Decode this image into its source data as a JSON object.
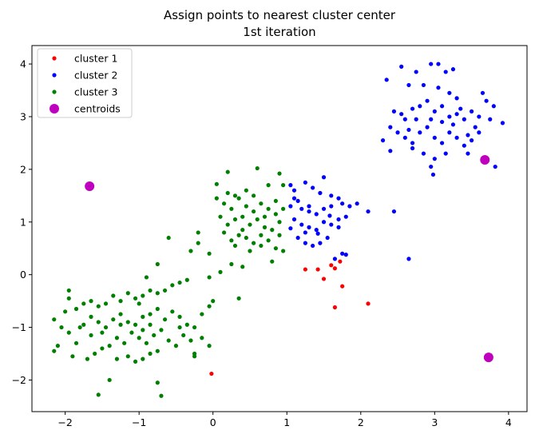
{
  "chart_data": {
    "type": "scatter",
    "title": "Assign points to nearest cluster center",
    "subtitle": "1st iteration",
    "xlim": [
      -2.45,
      4.25
    ],
    "ylim": [
      -2.6,
      4.35
    ],
    "xticks": [
      -2,
      -1,
      0,
      1,
      2,
      3,
      4
    ],
    "yticks": [
      -2,
      -1,
      0,
      1,
      2,
      3,
      4
    ],
    "legend_position": "top-left",
    "series": [
      {
        "name": "cluster 1",
        "color": "#ff0000",
        "marker": "small-dot",
        "points": [
          [
            1.25,
            0.1
          ],
          [
            1.42,
            0.1
          ],
          [
            1.5,
            -0.08
          ],
          [
            1.6,
            0.18
          ],
          [
            1.65,
            0.12
          ],
          [
            1.72,
            0.25
          ],
          [
            1.75,
            -0.22
          ],
          [
            1.65,
            -0.62
          ],
          [
            2.1,
            -0.55
          ],
          [
            -0.02,
            -1.88
          ]
        ]
      },
      {
        "name": "cluster 2",
        "color": "#0000ff",
        "marker": "small-dot",
        "points": [
          [
            2.35,
            3.7
          ],
          [
            2.55,
            3.95
          ],
          [
            2.65,
            3.6
          ],
          [
            2.75,
            3.85
          ],
          [
            2.85,
            3.6
          ],
          [
            2.95,
            4.0
          ],
          [
            3.05,
            4.0
          ],
          [
            3.15,
            3.85
          ],
          [
            3.25,
            3.9
          ],
          [
            3.05,
            3.55
          ],
          [
            3.2,
            3.45
          ],
          [
            3.3,
            3.35
          ],
          [
            2.45,
            3.1
          ],
          [
            2.55,
            3.05
          ],
          [
            2.6,
            2.95
          ],
          [
            2.7,
            3.15
          ],
          [
            2.8,
            3.2
          ],
          [
            2.9,
            3.3
          ],
          [
            3.0,
            3.1
          ],
          [
            3.1,
            3.2
          ],
          [
            3.2,
            3.0
          ],
          [
            3.3,
            3.05
          ],
          [
            3.4,
            2.95
          ],
          [
            3.5,
            3.1
          ],
          [
            3.6,
            3.0
          ],
          [
            3.7,
            3.3
          ],
          [
            3.8,
            3.2
          ],
          [
            3.65,
            3.45
          ],
          [
            2.4,
            2.8
          ],
          [
            2.5,
            2.7
          ],
          [
            2.6,
            2.6
          ],
          [
            2.7,
            2.5
          ],
          [
            2.8,
            2.7
          ],
          [
            2.9,
            2.8
          ],
          [
            3.0,
            2.6
          ],
          [
            3.1,
            2.5
          ],
          [
            3.2,
            2.7
          ],
          [
            3.3,
            2.6
          ],
          [
            3.4,
            2.45
          ],
          [
            3.5,
            2.55
          ],
          [
            3.6,
            2.7
          ],
          [
            2.3,
            2.55
          ],
          [
            2.4,
            2.35
          ],
          [
            2.7,
            2.4
          ],
          [
            2.85,
            2.3
          ],
          [
            3.0,
            2.2
          ],
          [
            3.15,
            2.3
          ],
          [
            2.95,
            2.05
          ],
          [
            3.45,
            2.3
          ],
          [
            3.25,
            2.85
          ],
          [
            2.95,
            2.95
          ],
          [
            3.1,
            2.9
          ],
          [
            2.75,
            2.95
          ],
          [
            2.65,
            2.75
          ],
          [
            3.55,
            2.8
          ],
          [
            3.75,
            2.95
          ],
          [
            3.45,
            2.65
          ],
          [
            3.35,
            3.15
          ],
          [
            3.92,
            2.88
          ],
          [
            3.82,
            2.05
          ],
          [
            2.98,
            1.9
          ],
          [
            1.05,
            1.7
          ],
          [
            1.1,
            1.6
          ],
          [
            1.25,
            1.75
          ],
          [
            1.35,
            1.65
          ],
          [
            1.45,
            1.55
          ],
          [
            1.5,
            1.85
          ],
          [
            1.6,
            1.5
          ],
          [
            1.7,
            1.45
          ],
          [
            1.75,
            1.35
          ],
          [
            1.85,
            1.3
          ],
          [
            1.95,
            1.35
          ],
          [
            1.05,
            1.3
          ],
          [
            1.15,
            1.4
          ],
          [
            1.2,
            1.25
          ],
          [
            1.3,
            1.2
          ],
          [
            1.4,
            1.15
          ],
          [
            1.5,
            1.25
          ],
          [
            1.6,
            1.3
          ],
          [
            1.7,
            1.05
          ],
          [
            1.8,
            1.1
          ],
          [
            1.1,
            1.05
          ],
          [
            1.2,
            0.95
          ],
          [
            1.3,
            0.9
          ],
          [
            1.4,
            0.85
          ],
          [
            1.5,
            1.0
          ],
          [
            1.6,
            0.95
          ],
          [
            1.7,
            0.9
          ],
          [
            1.15,
            0.7
          ],
          [
            1.25,
            0.6
          ],
          [
            1.35,
            0.55
          ],
          [
            1.45,
            0.6
          ],
          [
            1.55,
            0.7
          ],
          [
            1.65,
            0.3
          ],
          [
            1.75,
            0.4
          ],
          [
            1.8,
            0.38
          ],
          [
            2.1,
            1.2
          ],
          [
            2.45,
            1.2
          ],
          [
            2.65,
            0.3
          ],
          [
            1.25,
            0.8
          ],
          [
            1.42,
            0.78
          ],
          [
            1.1,
            1.45
          ],
          [
            1.3,
            1.3
          ],
          [
            1.58,
            1.12
          ],
          [
            1.05,
            0.88
          ]
        ]
      },
      {
        "name": "cluster 3",
        "color": "#008000",
        "marker": "small-dot",
        "points": [
          [
            0.05,
            1.72
          ],
          [
            0.2,
            1.95
          ],
          [
            0.3,
            1.5
          ],
          [
            0.45,
            1.6
          ],
          [
            0.6,
            2.02
          ],
          [
            0.75,
            1.7
          ],
          [
            0.9,
            1.92
          ],
          [
            0.95,
            1.7
          ],
          [
            0.05,
            1.45
          ],
          [
            0.15,
            1.35
          ],
          [
            0.25,
            1.25
          ],
          [
            0.35,
            1.45
          ],
          [
            0.45,
            1.3
          ],
          [
            0.55,
            1.2
          ],
          [
            0.65,
            1.35
          ],
          [
            0.75,
            1.25
          ],
          [
            0.85,
            1.4
          ],
          [
            0.95,
            1.25
          ],
          [
            0.1,
            1.1
          ],
          [
            0.2,
            0.95
          ],
          [
            0.3,
            1.05
          ],
          [
            0.4,
            0.85
          ],
          [
            0.5,
            0.95
          ],
          [
            0.6,
            1.05
          ],
          [
            0.7,
            0.9
          ],
          [
            0.8,
            0.85
          ],
          [
            0.9,
            1.0
          ],
          [
            0.15,
            0.8
          ],
          [
            0.25,
            0.65
          ],
          [
            0.35,
            0.75
          ],
          [
            0.45,
            0.7
          ],
          [
            0.55,
            0.6
          ],
          [
            0.65,
            0.55
          ],
          [
            0.75,
            0.65
          ],
          [
            0.85,
            0.5
          ],
          [
            0.95,
            0.45
          ],
          [
            0.4,
            0.15
          ],
          [
            0.8,
            0.25
          ],
          [
            -0.2,
            0.8
          ],
          [
            -0.2,
            0.6
          ],
          [
            -0.05,
            0.4
          ],
          [
            -0.3,
            0.45
          ],
          [
            -0.6,
            0.7
          ],
          [
            -0.75,
            0.2
          ],
          [
            -0.05,
            -0.05
          ],
          [
            0.1,
            0.05
          ],
          [
            -0.35,
            -0.1
          ],
          [
            -0.45,
            -0.15
          ],
          [
            -0.55,
            -0.2
          ],
          [
            -0.65,
            -0.3
          ],
          [
            -0.75,
            -0.35
          ],
          [
            -0.85,
            -0.3
          ],
          [
            -0.95,
            -0.4
          ],
          [
            -1.05,
            -0.45
          ],
          [
            -1.15,
            -0.35
          ],
          [
            -1.25,
            -0.5
          ],
          [
            -1.35,
            -0.4
          ],
          [
            -1.45,
            -0.55
          ],
          [
            -1.55,
            -0.6
          ],
          [
            -1.65,
            -0.5
          ],
          [
            -1.75,
            -0.55
          ],
          [
            -1.85,
            -0.65
          ],
          [
            -1.95,
            -0.3
          ],
          [
            -1.95,
            -0.45
          ],
          [
            -2.15,
            -0.85
          ],
          [
            -2.05,
            -1.0
          ],
          [
            -1.95,
            -1.1
          ],
          [
            -1.85,
            -1.3
          ],
          [
            -1.75,
            -0.95
          ],
          [
            -1.65,
            -0.8
          ],
          [
            -1.55,
            -0.9
          ],
          [
            -1.45,
            -1.0
          ],
          [
            -1.35,
            -0.85
          ],
          [
            -1.25,
            -0.75
          ],
          [
            -1.15,
            -0.9
          ],
          [
            -1.05,
            -0.95
          ],
          [
            -0.95,
            -0.8
          ],
          [
            -0.85,
            -0.75
          ],
          [
            -0.75,
            -0.65
          ],
          [
            -0.65,
            -0.85
          ],
          [
            -0.55,
            -0.7
          ],
          [
            -0.45,
            -0.8
          ],
          [
            -0.35,
            -0.95
          ],
          [
            -0.25,
            -1.0
          ],
          [
            -0.15,
            -0.75
          ],
          [
            -0.05,
            -0.6
          ],
          [
            -1.1,
            -1.1
          ],
          [
            -1.0,
            -1.2
          ],
          [
            -0.9,
            -1.3
          ],
          [
            -0.8,
            -1.15
          ],
          [
            -0.7,
            -1.05
          ],
          [
            -0.6,
            -1.25
          ],
          [
            -0.5,
            -1.35
          ],
          [
            -0.4,
            -1.15
          ],
          [
            -0.3,
            -1.25
          ],
          [
            -1.2,
            -1.3
          ],
          [
            -1.3,
            -1.2
          ],
          [
            -1.4,
            -1.35
          ],
          [
            -1.5,
            -1.4
          ],
          [
            -1.6,
            -1.5
          ],
          [
            -1.7,
            -1.6
          ],
          [
            -2.1,
            -1.35
          ],
          [
            -2.15,
            -1.45
          ],
          [
            -1.9,
            -1.55
          ],
          [
            -1.3,
            -1.6
          ],
          [
            -1.15,
            -1.55
          ],
          [
            -1.05,
            -1.65
          ],
          [
            -0.95,
            -1.6
          ],
          [
            -0.85,
            -1.5
          ],
          [
            -0.75,
            -1.45
          ],
          [
            -1.4,
            -2.0
          ],
          [
            -1.55,
            -2.28
          ],
          [
            -0.75,
            -2.05
          ],
          [
            -0.7,
            -2.3
          ],
          [
            -0.05,
            -1.35
          ],
          [
            -0.15,
            -1.2
          ],
          [
            -0.25,
            -1.5
          ],
          [
            -0.25,
            -1.55
          ],
          [
            -1.65,
            -1.15
          ],
          [
            -1.5,
            -1.1
          ],
          [
            -1.0,
            -0.55
          ],
          [
            -0.85,
            -0.95
          ],
          [
            -0.45,
            -1.0
          ],
          [
            -0.95,
            -1.05
          ],
          [
            -1.25,
            -0.95
          ],
          [
            -1.8,
            -1.0
          ],
          [
            -2.0,
            -0.7
          ],
          [
            0.35,
            -0.45
          ],
          [
            0.0,
            -0.5
          ],
          [
            0.25,
            0.2
          ],
          [
            -0.9,
            -0.05
          ],
          [
            0.55,
            1.5
          ],
          [
            0.7,
            1.1
          ],
          [
            0.85,
            1.15
          ],
          [
            0.4,
            1.1
          ],
          [
            0.2,
            1.55
          ],
          [
            0.65,
            0.75
          ],
          [
            0.5,
            0.45
          ],
          [
            0.3,
            0.55
          ],
          [
            0.9,
            0.75
          ]
        ]
      },
      {
        "name": "centroids",
        "color": "#bf00bf",
        "marker": "large-dot",
        "points": [
          [
            -1.67,
            1.68
          ],
          [
            3.68,
            2.18
          ],
          [
            3.73,
            -1.57
          ]
        ]
      }
    ]
  }
}
